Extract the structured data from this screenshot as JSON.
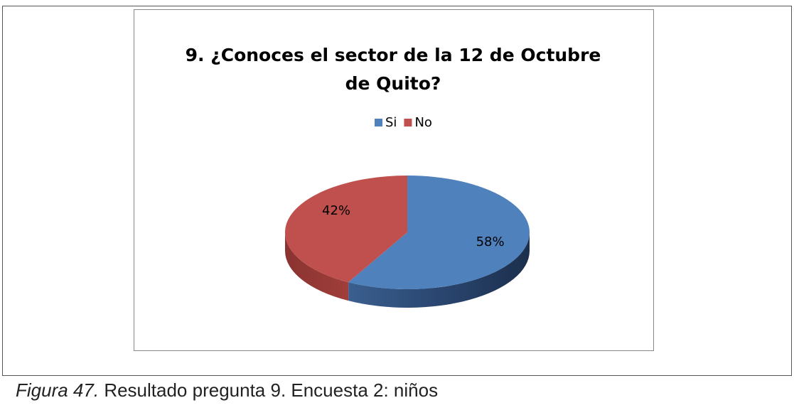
{
  "chart_data": {
    "type": "pie",
    "title": "9. ¿Conoces el sector de la 12 de Octubre de Quito?",
    "categories": [
      "Si",
      "No"
    ],
    "values": [
      58,
      42
    ],
    "value_labels": [
      "58%",
      "42%"
    ],
    "colors": [
      "#4f81bd",
      "#c0504d"
    ],
    "legend": "top"
  },
  "caption": {
    "label": "Figura 47.",
    "text": "Resultado pregunta 9. Encuesta 2: niños"
  }
}
